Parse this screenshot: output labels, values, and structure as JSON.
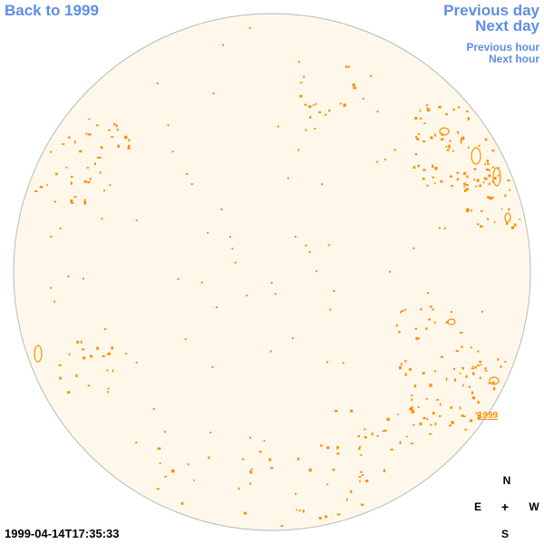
{
  "nav": {
    "back_label": "Back to 1999",
    "prev_day_label": "Previous day",
    "next_day_label": "Next day",
    "prev_hour_label": "Previous hour",
    "next_hour_label": "Next hour"
  },
  "disk": {
    "fill_color": "#fff8ea",
    "border_color": "#b9b9b9",
    "contour_color": "#ff8c00"
  },
  "region_label": "1999",
  "timestamp": "1999-04-14T17:35:33",
  "compass": {
    "north": "N",
    "east": "E",
    "west": "W",
    "south": "S",
    "center": "+"
  }
}
